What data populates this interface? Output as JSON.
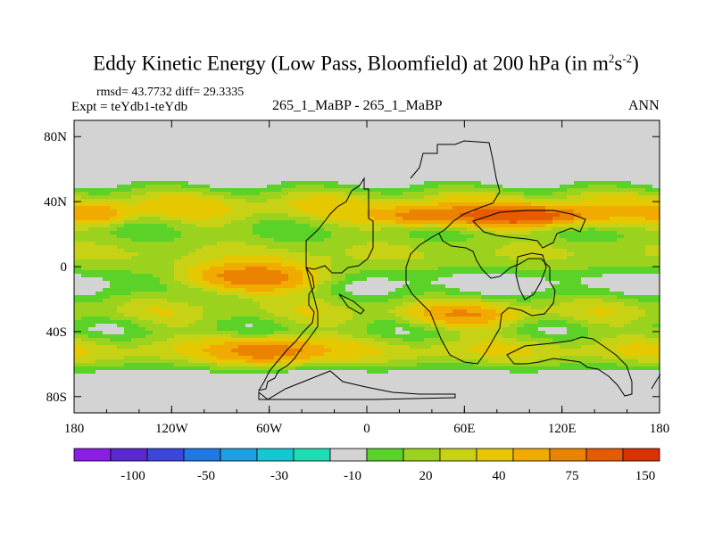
{
  "title_main": "Eddy Kinetic Energy (Low Pass, Bloomfield) at 200 hPa (in m",
  "title_sup1": "2",
  "title_mid": "s",
  "title_sup2": "-2",
  "title_end": ")",
  "stats": "rmsd= 43.7732 diff= 29.3335",
  "expt": "Expt = teYdb1-teYdb",
  "case": "265_1_MaBP - 265_1_MaBP",
  "season": "ANN",
  "colors": {
    "fill_na": "#d3d3d3",
    "scale": [
      "#8a1ee6",
      "#5a28d2",
      "#3c46dc",
      "#1e78e6",
      "#1ea0e6",
      "#14c8d2",
      "#1edcb4",
      "#d3d3d3",
      "#5ad228",
      "#9ad21e",
      "#c8d214",
      "#e6c800",
      "#f0aa00",
      "#eb8200",
      "#e65a00",
      "#dc3200"
    ]
  },
  "chart_data": {
    "type": "heatmap",
    "title": "Eddy Kinetic Energy (Low Pass, Bloomfield) at 200 hPa (in m2s-2)",
    "x_ticks": [
      "180",
      "120W",
      "60W",
      "0",
      "60E",
      "120E",
      "180"
    ],
    "x_values": [
      -180,
      -120,
      -60,
      0,
      60,
      120,
      180
    ],
    "y_ticks": [
      "80N",
      "40N",
      "0",
      "40S",
      "80S"
    ],
    "y_values": [
      80,
      40,
      0,
      -40,
      -80
    ],
    "xlim": [
      -180,
      180
    ],
    "ylim": [
      -90,
      90
    ],
    "colorbar_labels": [
      "-100",
      "-50",
      "-30",
      "-10",
      "20",
      "40",
      "75",
      "150"
    ],
    "bands": [
      {
        "lat": 37,
        "amp": 42,
        "width": 12
      },
      {
        "lat": 8,
        "amp": 30,
        "width": 14
      },
      {
        "lat": -27,
        "amp": 32,
        "width": 11
      },
      {
        "lat": -52,
        "amp": 38,
        "width": 11
      }
    ],
    "hotspots": [
      {
        "lon": -70,
        "lat": -7,
        "amp": 85,
        "rx": 40,
        "ry": 9
      },
      {
        "lon": 95,
        "lat": 31,
        "amp": 95,
        "rx": 45,
        "ry": 6
      },
      {
        "lon": 30,
        "lat": 31,
        "amp": 50,
        "rx": 25,
        "ry": 6
      },
      {
        "lon": -165,
        "lat": 32,
        "amp": 40,
        "rx": 20,
        "ry": 6
      },
      {
        "lon": -60,
        "lat": -52,
        "amp": 60,
        "rx": 30,
        "ry": 8
      },
      {
        "lon": 60,
        "lat": -30,
        "amp": 40,
        "rx": 35,
        "ry": 7
      }
    ]
  }
}
